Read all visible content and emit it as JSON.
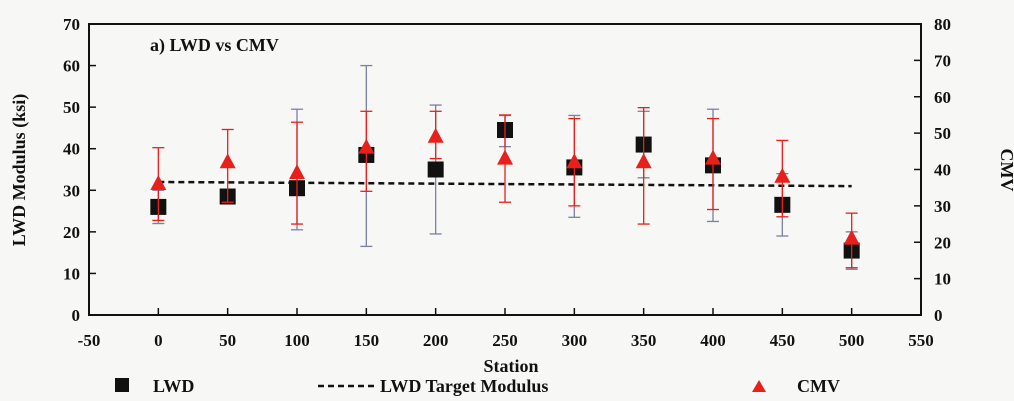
{
  "chart_data": {
    "type": "scatter",
    "title": "a) LWD vs CMV",
    "xlabel": "Station",
    "ylabel": "LWD Modulus (ksi)",
    "y2label": "CMV",
    "xlim": [
      -50,
      550
    ],
    "xticks": [
      -50,
      0,
      50,
      100,
      150,
      200,
      250,
      300,
      350,
      400,
      450,
      500,
      550
    ],
    "ylim": [
      0,
      70
    ],
    "yticks": [
      0,
      10,
      20,
      30,
      40,
      50,
      60,
      70
    ],
    "y2lim": [
      0,
      80
    ],
    "y2ticks": [
      0,
      10,
      20,
      30,
      40,
      50,
      60,
      70,
      80
    ],
    "grid": false,
    "legend_position": "bottom",
    "colors": {
      "lwd": "#111111",
      "lwd_error": "#7b7fa3",
      "cmv": "#e8201c",
      "target": "#111111"
    },
    "series": [
      {
        "name": "LWD",
        "axis": "left",
        "marker": "square",
        "x": [
          0,
          50,
          100,
          150,
          200,
          250,
          300,
          350,
          400,
          450,
          500
        ],
        "y": [
          26,
          28.5,
          30.5,
          38.5,
          35,
          44.5,
          35.5,
          41,
          36,
          26.5,
          15.5
        ],
        "err_low": [
          22,
          27,
          20.5,
          16.5,
          19.5,
          40.5,
          23.5,
          33,
          22.5,
          19,
          11
        ],
        "err_high": [
          30,
          30,
          49.5,
          60,
          50.5,
          48,
          48,
          49,
          49.5,
          34,
          20
        ]
      },
      {
        "name": "CMV",
        "axis": "right",
        "marker": "triangle",
        "x": [
          0,
          50,
          100,
          150,
          200,
          250,
          300,
          350,
          400,
          450,
          500
        ],
        "y": [
          36,
          42,
          39,
          46,
          49,
          43,
          42,
          42,
          43,
          38,
          21
        ],
        "err_low": [
          26,
          31,
          25,
          34,
          43,
          31,
          30,
          25,
          29,
          27,
          13
        ],
        "err_high": [
          46,
          51,
          53,
          56,
          56,
          55,
          54,
          57,
          54,
          48,
          28
        ]
      },
      {
        "name": "LWD Target Modulus",
        "axis": "left",
        "line_style": "dashed",
        "x": [
          0,
          500
        ],
        "y": [
          32,
          31
        ]
      }
    ]
  }
}
